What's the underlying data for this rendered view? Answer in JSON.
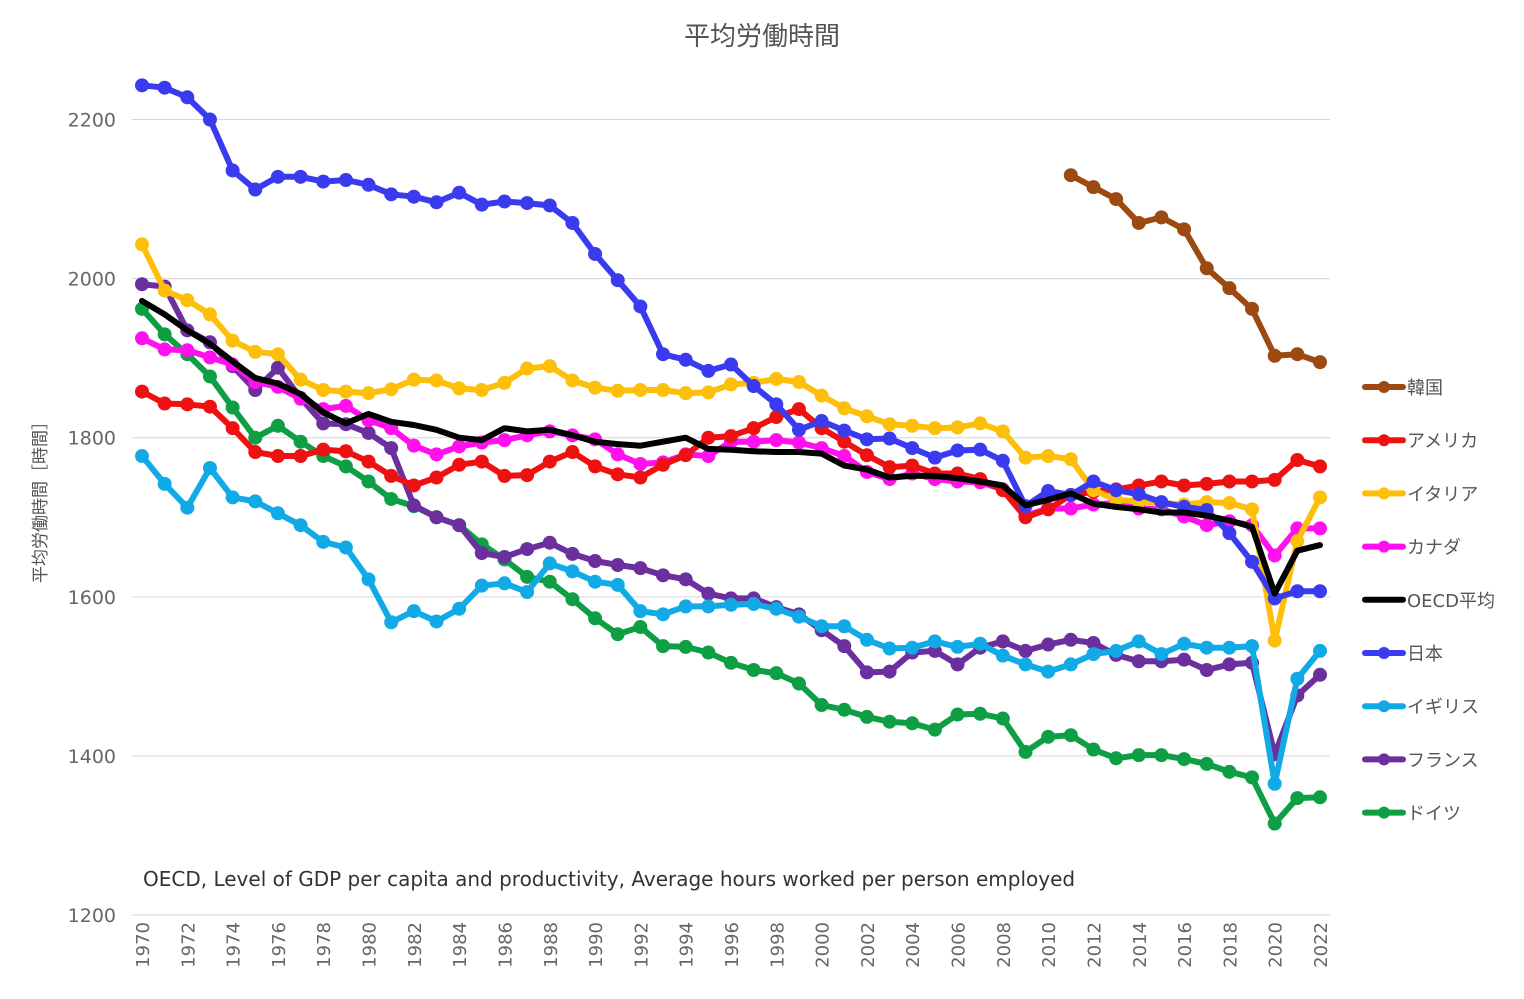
{
  "chart_data": {
    "type": "line",
    "title": "平均労働時間",
    "ylabel": "平均労働時間［時間］",
    "xlabel": "",
    "annotation": "OECD, Level of GDP per capita and productivity, Average hours worked per person employed",
    "ylim": [
      1200,
      2300
    ],
    "yticks": [
      1200,
      1400,
      1600,
      1800,
      2000,
      2200
    ],
    "x": [
      1970,
      1971,
      1972,
      1973,
      1974,
      1975,
      1976,
      1977,
      1978,
      1979,
      1980,
      1981,
      1982,
      1983,
      1984,
      1985,
      1986,
      1987,
      1988,
      1989,
      1990,
      1991,
      1992,
      1993,
      1994,
      1995,
      1996,
      1997,
      1998,
      1999,
      2000,
      2001,
      2002,
      2003,
      2004,
      2005,
      2006,
      2007,
      2008,
      2009,
      2010,
      2011,
      2012,
      2013,
      2014,
      2015,
      2016,
      2017,
      2018,
      2019,
      2020,
      2021,
      2022
    ],
    "xticks": [
      1970,
      1972,
      1974,
      1976,
      1978,
      1980,
      1982,
      1984,
      1986,
      1988,
      1990,
      1992,
      1994,
      1996,
      1998,
      2000,
      2002,
      2004,
      2006,
      2008,
      2010,
      2012,
      2014,
      2016,
      2018,
      2020,
      2022
    ],
    "grid": true,
    "legend": "right",
    "series": [
      {
        "name": "韓国",
        "color": "#9C4A12",
        "markers": true,
        "values": [
          null,
          null,
          null,
          null,
          null,
          null,
          null,
          null,
          null,
          null,
          null,
          null,
          null,
          null,
          null,
          null,
          null,
          null,
          null,
          null,
          null,
          null,
          null,
          null,
          null,
          null,
          null,
          null,
          null,
          null,
          null,
          null,
          null,
          null,
          null,
          null,
          null,
          null,
          null,
          null,
          null,
          2130,
          2115,
          2100,
          2070,
          2077,
          2062,
          2013,
          1988,
          1962,
          1903,
          1905,
          1895
        ]
      },
      {
        "name": "アメリカ",
        "color": "#EE1111",
        "markers": true,
        "values": [
          1858,
          1843,
          1842,
          1839,
          1812,
          1782,
          1777,
          1777,
          1785,
          1783,
          1770,
          1752,
          1740,
          1750,
          1766,
          1770,
          1752,
          1753,
          1770,
          1782,
          1764,
          1754,
          1750,
          1766,
          1778,
          1800,
          1802,
          1812,
          1826,
          1836,
          1812,
          1795,
          1778,
          1763,
          1765,
          1755,
          1755,
          1748,
          1734,
          1700,
          1710,
          1728,
          1732,
          1735,
          1740,
          1745,
          1740,
          1742,
          1745,
          1745,
          1747,
          1772,
          1764
        ]
      },
      {
        "name": "イタリア",
        "color": "#FDBF0A",
        "markers": true,
        "values": [
          2043,
          1985,
          1973,
          1955,
          1922,
          1908,
          1905,
          1873,
          1860,
          1858,
          1856,
          1861,
          1873,
          1872,
          1862,
          1860,
          1869,
          1887,
          1890,
          1872,
          1863,
          1859,
          1860,
          1860,
          1856,
          1857,
          1867,
          1869,
          1874,
          1870,
          1853,
          1837,
          1827,
          1817,
          1815,
          1812,
          1813,
          1818,
          1808,
          1775,
          1777,
          1773,
          1734,
          1722,
          1720,
          1718,
          1716,
          1719,
          1718,
          1710,
          1545,
          1670,
          1725
        ]
      },
      {
        "name": "カナダ",
        "color": "#FF11EE",
        "markers": true,
        "values": [
          1925,
          1911,
          1910,
          1901,
          1892,
          1870,
          1864,
          1849,
          1836,
          1840,
          1822,
          1812,
          1790,
          1779,
          1789,
          1794,
          1797,
          1803,
          1808,
          1803,
          1798,
          1779,
          1767,
          1769,
          1779,
          1777,
          1795,
          1795,
          1797,
          1794,
          1787,
          1777,
          1757,
          1748,
          1755,
          1748,
          1745,
          1744,
          1735,
          1702,
          1711,
          1711,
          1716,
          1718,
          1711,
          1710,
          1701,
          1690,
          1695,
          1690,
          1652,
          1686,
          1686
        ]
      },
      {
        "name": "OECD平均",
        "color": "#000000",
        "markers": false,
        "values": [
          1972,
          1955,
          1935,
          1918,
          1896,
          1875,
          1868,
          1855,
          1832,
          1818,
          1830,
          1820,
          1816,
          1810,
          1800,
          1797,
          1812,
          1808,
          1810,
          1803,
          1795,
          1792,
          1790,
          1795,
          1800,
          1786,
          1785,
          1783,
          1782,
          1782,
          1780,
          1765,
          1760,
          1750,
          1752,
          1752,
          1749,
          1745,
          1740,
          1715,
          1722,
          1730,
          1717,
          1713,
          1710,
          1706,
          1706,
          1702,
          1696,
          1688,
          1604,
          1658,
          1665
        ]
      },
      {
        "name": "日本",
        "color": "#3A3AEE",
        "markers": true,
        "values": [
          2243,
          2240,
          2228,
          2200,
          2136,
          2112,
          2128,
          2128,
          2122,
          2124,
          2118,
          2106,
          2103,
          2096,
          2108,
          2093,
          2097,
          2095,
          2092,
          2070,
          2031,
          1998,
          1965,
          1905,
          1898,
          1884,
          1892,
          1865,
          1842,
          1810,
          1821,
          1809,
          1798,
          1799,
          1787,
          1775,
          1784,
          1785,
          1771,
          1714,
          1733,
          1728,
          1745,
          1734,
          1729,
          1719,
          1713,
          1709,
          1680,
          1644,
          1598,
          1607,
          1607
        ]
      },
      {
        "name": "イギリス",
        "color": "#11AAE6",
        "markers": true,
        "values": [
          1777,
          1742,
          1712,
          1762,
          1725,
          1720,
          1705,
          1690,
          1669,
          1662,
          1622,
          1568,
          1582,
          1569,
          1585,
          1614,
          1617,
          1606,
          1642,
          1632,
          1619,
          1615,
          1582,
          1578,
          1588,
          1588,
          1590,
          1591,
          1585,
          1575,
          1563,
          1563,
          1546,
          1535,
          1536,
          1544,
          1537,
          1541,
          1526,
          1515,
          1506,
          1515,
          1528,
          1532,
          1544,
          1528,
          1541,
          1536,
          1536,
          1538,
          1365,
          1497,
          1532
        ]
      },
      {
        "name": "フランス",
        "color": "#6B2F9E",
        "markers": true,
        "values": [
          1993,
          1990,
          1935,
          1920,
          1890,
          1860,
          1888,
          1850,
          1818,
          1817,
          1806,
          1787,
          1715,
          1700,
          1690,
          1655,
          1650,
          1660,
          1668,
          1654,
          1645,
          1640,
          1636,
          1627,
          1622,
          1604,
          1598,
          1598,
          1587,
          1578,
          1558,
          1538,
          1505,
          1506,
          1530,
          1532,
          1515,
          1536,
          1544,
          1532,
          1540,
          1546,
          1542,
          1527,
          1519,
          1519,
          1521,
          1508,
          1515,
          1517,
          1402,
          1476,
          1502
        ]
      },
      {
        "name": "ドイツ",
        "color": "#0E9E44",
        "markers": true,
        "values": [
          1962,
          1930,
          1905,
          1877,
          1838,
          1800,
          1815,
          1795,
          1777,
          1764,
          1745,
          1723,
          1714,
          1700,
          1690,
          1666,
          1647,
          1625,
          1619,
          1597,
          1573,
          1553,
          1562,
          1538,
          1537,
          1530,
          1517,
          1508,
          1504,
          1491,
          1464,
          1458,
          1449,
          1443,
          1441,
          1433,
          1452,
          1453,
          1447,
          1405,
          1424,
          1426,
          1408,
          1397,
          1401,
          1401,
          1396,
          1390,
          1380,
          1373,
          1315,
          1347,
          1348
        ]
      }
    ]
  }
}
